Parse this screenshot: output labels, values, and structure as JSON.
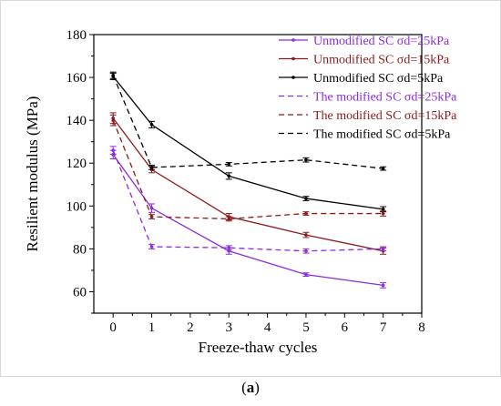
{
  "chart_data": {
    "type": "line",
    "xlabel": "Freeze-thaw cycles",
    "ylabel": "Resilient modulus (MPa)",
    "xlim": [
      -0.5,
      8
    ],
    "ylim": [
      50,
      180
    ],
    "xticks": [
      0,
      1,
      2,
      3,
      4,
      5,
      6,
      7,
      8
    ],
    "yticks": [
      60,
      80,
      100,
      120,
      140,
      160,
      180
    ],
    "grid": false,
    "legend_position": "top-right",
    "x": [
      0,
      1,
      3,
      5,
      7
    ],
    "series": [
      {
        "name": "Unmodified SC σd=25kPa",
        "color": "#8b2be2",
        "dash": "solid",
        "values": [
          124,
          99,
          79,
          68,
          63
        ],
        "errors": [
          2,
          2,
          1.5,
          0.8,
          1.2
        ]
      },
      {
        "name": "Unmodified SC σd=15kPa",
        "color": "#8b1a1a",
        "dash": "solid",
        "values": [
          141,
          117,
          95,
          86.5,
          79
        ],
        "errors": [
          2.5,
          1.5,
          1.5,
          1.2,
          1.5
        ]
      },
      {
        "name": "Unmodified SC σd=5kPa",
        "color": "#000000",
        "dash": "solid",
        "values": [
          160.5,
          138,
          114,
          103.5,
          98.5
        ],
        "errors": [
          1.5,
          1.5,
          1.5,
          1,
          1.2
        ]
      },
      {
        "name": "The modified SC σd=25kPa",
        "color": "#8b2be2",
        "dash": "dashed",
        "values": [
          126,
          81,
          80.5,
          79,
          80
        ],
        "errors": [
          1.8,
          1,
          1,
          1,
          1
        ]
      },
      {
        "name": "The modified SC σd=15kPa",
        "color": "#8b1a1a",
        "dash": "dashed",
        "values": [
          140,
          95,
          94,
          96.5,
          96.5
        ],
        "errors": [
          2.5,
          1,
          1,
          0.8,
          1.2
        ]
      },
      {
        "name": "The modified SC σd=5kPa",
        "color": "#000000",
        "dash": "dashed",
        "values": [
          161,
          118,
          119.5,
          121.5,
          117.5
        ],
        "errors": [
          1.5,
          1,
          0.8,
          1,
          0.8
        ]
      }
    ]
  },
  "caption": {
    "open": "(",
    "label": "a",
    "close": ")"
  }
}
